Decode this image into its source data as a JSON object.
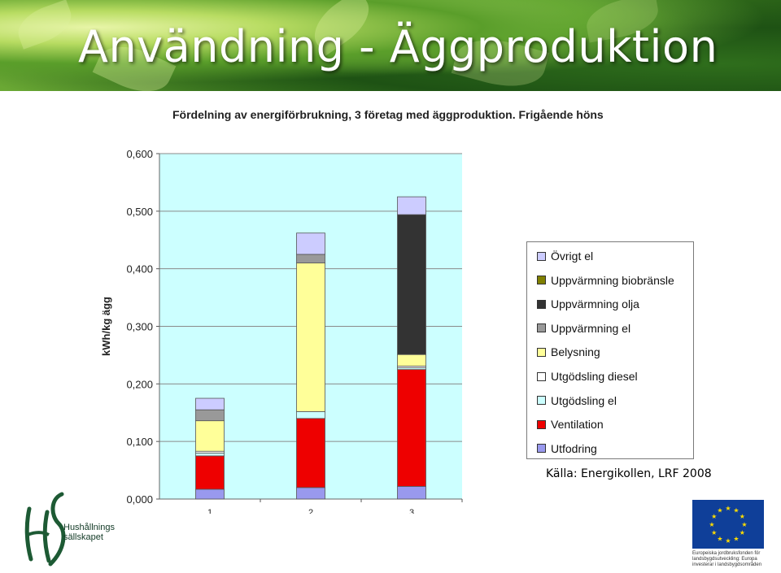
{
  "slide": {
    "title": "Användning - Äggproduktion",
    "source": "Källa: Energikollen, LRF 2008",
    "logo_line1": "Hushållnings",
    "logo_line2": "sällskapet",
    "eu_text": "Europeiska jordbruksfonden för landsbygdsutveckling: Europa investerar i landsbygdsområden"
  },
  "chart_data": {
    "type": "bar",
    "stacked": true,
    "title": "Fördelning av energiförbrukning, 3 företag med äggproduktion. Frigående höns",
    "xlabel": "",
    "ylabel": "kWh/kg ägg",
    "categories": [
      "1",
      "2",
      "3"
    ],
    "ylim": [
      0,
      0.6
    ],
    "yticks": [
      0,
      0.1,
      0.2,
      0.3,
      0.4,
      0.5,
      0.6
    ],
    "ytick_labels": [
      "0,000",
      "0,100",
      "0,200",
      "0,300",
      "0,400",
      "0,500",
      "0,600"
    ],
    "grid": true,
    "legend_position": "right",
    "series": [
      {
        "name": "Utfodring",
        "color": "#9999ee",
        "values": [
          0.017,
          0.02,
          0.022
        ]
      },
      {
        "name": "Ventilation",
        "color": "#ee0000",
        "values": [
          0.058,
          0.12,
          0.203
        ]
      },
      {
        "name": "Utgödsling el",
        "color": "#ccffff",
        "values": [
          0.005,
          0.012,
          0.003
        ]
      },
      {
        "name": "Utgödsling diesel",
        "color": "#ffffff",
        "values": [
          0.003,
          0.0,
          0.003
        ]
      },
      {
        "name": "Belysning",
        "color": "#ffff99",
        "values": [
          0.053,
          0.258,
          0.02
        ]
      },
      {
        "name": "Uppvärmning el",
        "color": "#999999",
        "values": [
          0.019,
          0.015,
          0.0
        ]
      },
      {
        "name": "Uppvärmning olja",
        "color": "#333333",
        "values": [
          0.0,
          0.0,
          0.243
        ]
      },
      {
        "name": "Uppvärmning biobränsle",
        "color": "#808000",
        "values": [
          0.0,
          0.0,
          0.0
        ]
      },
      {
        "name": "Övrigt el",
        "color": "#ccccff",
        "values": [
          0.02,
          0.037,
          0.031
        ]
      }
    ]
  }
}
